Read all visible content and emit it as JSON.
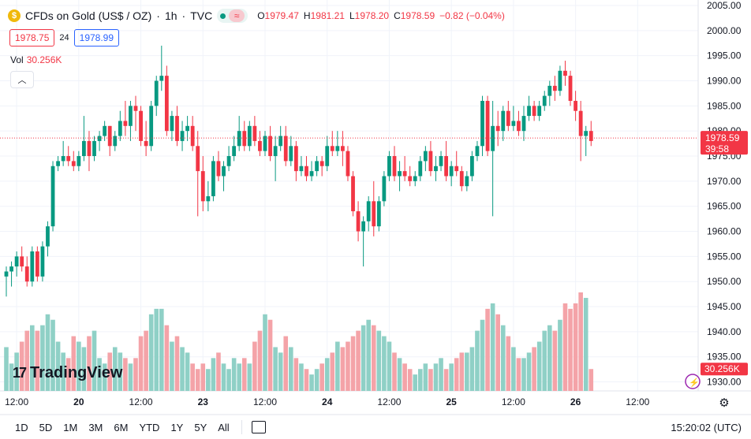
{
  "header": {
    "symbol": "CFDs on Gold (US$ / OZ)",
    "interval": "1h",
    "source": "TVC",
    "sep": "·",
    "open_key": "O",
    "open": "1979.47",
    "high_key": "H",
    "high": "1981.21",
    "low_key": "L",
    "low": "1978.20",
    "close_key": "C",
    "close": "1978.59",
    "change": "−0.82 (−0.04%)"
  },
  "quote": {
    "bid": "1978.75",
    "spread": "24",
    "ask": "1978.99"
  },
  "volume": {
    "label": "Vol",
    "value": "30.256K"
  },
  "price_label": {
    "price": "1978.59",
    "countdown": "39:58",
    "volume_tag": "30.256K"
  },
  "logo": {
    "text": "TradingView",
    "mark": "17"
  },
  "toolbar": {
    "ranges": [
      "1D",
      "5D",
      "1M",
      "3M",
      "6M",
      "YTD",
      "1Y",
      "5Y",
      "All"
    ],
    "time": "15:20:02 (UTC)"
  },
  "colors": {
    "up": "#089981",
    "down": "#f23645",
    "up_vol": "#8fd0c6",
    "down_vol": "#f4a3a8",
    "grid": "#f0f3fa"
  },
  "chart_data": {
    "type": "candlestick",
    "title": "CFDs on Gold (US$ / OZ) · 1h · TVC",
    "y_ticks": [
      1930,
      1935,
      1940,
      1945,
      1950,
      1955,
      1960,
      1965,
      1970,
      1975,
      1980,
      1985,
      1990,
      1995,
      2000,
      2005
    ],
    "ylim": [
      1928.2,
      2006.1
    ],
    "x_tick_labels": [
      {
        "label": "12:00",
        "index": 2
      },
      {
        "label": "20",
        "index": 14
      },
      {
        "label": "12:00",
        "index": 26
      },
      {
        "label": "23",
        "index": 38
      },
      {
        "label": "12:00",
        "index": 50
      },
      {
        "label": "24",
        "index": 62
      },
      {
        "label": "12:00",
        "index": 74
      },
      {
        "label": "25",
        "index": 86
      },
      {
        "label": "12:00",
        "index": 98
      },
      {
        "label": "26",
        "index": 110
      },
      {
        "label": "12:00",
        "index": 122
      }
    ],
    "current_price": 1978.59,
    "candles": [
      [
        1951,
        1953,
        1947,
        1952,
        8
      ],
      [
        1952,
        1954,
        1949,
        1953,
        5
      ],
      [
        1953,
        1956,
        1951,
        1955,
        7
      ],
      [
        1955,
        1957,
        1952,
        1953,
        9
      ],
      [
        1953,
        1955,
        1949,
        1950,
        11
      ],
      [
        1950,
        1957,
        1949,
        1956,
        12
      ],
      [
        1956,
        1957,
        1950,
        1951,
        11
      ],
      [
        1951,
        1958,
        1950,
        1957,
        12
      ],
      [
        1957,
        1962,
        1955,
        1961,
        14
      ],
      [
        1961,
        1974,
        1960,
        1973,
        13
      ],
      [
        1973,
        1975,
        1972,
        1974,
        9
      ],
      [
        1974,
        1978,
        1973,
        1975,
        7
      ],
      [
        1975,
        1977,
        1973,
        1974,
        6
      ],
      [
        1974,
        1976,
        1972,
        1973,
        10
      ],
      [
        1973,
        1976,
        1972,
        1975,
        9
      ],
      [
        1975,
        1983,
        1974,
        1978,
        8
      ],
      [
        1978,
        1980,
        1972,
        1975,
        10
      ],
      [
        1975,
        1979,
        1974,
        1978,
        11
      ],
      [
        1978,
        1980,
        1976,
        1979,
        6
      ],
      [
        1979,
        1982,
        1978,
        1981,
        5
      ],
      [
        1981,
        1981,
        1975,
        1977,
        7
      ],
      [
        1977,
        1980,
        1976,
        1979,
        8
      ],
      [
        1979,
        1984,
        1978,
        1982,
        7
      ],
      [
        1982,
        1986,
        1979,
        1981,
        6
      ],
      [
        1981,
        1986,
        1978,
        1985,
        5
      ],
      [
        1985,
        1987,
        1980,
        1984,
        6
      ],
      [
        1984,
        1985,
        1977,
        1978,
        10
      ],
      [
        1978,
        1982,
        1975,
        1977,
        11
      ],
      [
        1977,
        1986,
        1976,
        1985,
        14
      ],
      [
        1985,
        1991,
        1983,
        1990,
        15
      ],
      [
        1990,
        1997,
        1988,
        1991,
        15
      ],
      [
        1991,
        1993,
        1979,
        1980,
        12
      ],
      [
        1980,
        1984,
        1978,
        1983,
        9
      ],
      [
        1983,
        1985,
        1977,
        1978,
        10
      ],
      [
        1978,
        1982,
        1976,
        1980,
        8
      ],
      [
        1980,
        1983,
        1978,
        1981,
        7
      ],
      [
        1981,
        1983,
        1976,
        1977,
        5
      ],
      [
        1977,
        1980,
        1963,
        1972,
        4
      ],
      [
        1972,
        1975,
        1964,
        1966,
        5
      ],
      [
        1966,
        1970,
        1964,
        1967,
        4
      ],
      [
        1967,
        1975,
        1966,
        1974,
        6
      ],
      [
        1974,
        1976,
        1970,
        1971,
        7
      ],
      [
        1971,
        1974,
        1968,
        1973,
        5
      ],
      [
        1973,
        1977,
        1972,
        1975,
        4
      ],
      [
        1975,
        1979,
        1974,
        1977,
        6
      ],
      [
        1977,
        1983,
        1976,
        1980,
        5
      ],
      [
        1980,
        1982,
        1976,
        1977,
        6
      ],
      [
        1977,
        1982,
        1976,
        1981,
        5
      ],
      [
        1981,
        1983,
        1977,
        1978,
        9
      ],
      [
        1978,
        1980,
        1975,
        1976,
        11
      ],
      [
        1976,
        1980,
        1975,
        1979,
        14
      ],
      [
        1979,
        1981,
        1974,
        1975,
        13
      ],
      [
        1975,
        1979,
        1970,
        1977,
        8
      ],
      [
        1977,
        1981,
        1976,
        1979,
        7
      ],
      [
        1979,
        1981,
        1973,
        1974,
        10
      ],
      [
        1974,
        1979,
        1973,
        1977,
        8
      ],
      [
        1977,
        1978,
        1970,
        1972,
        6
      ],
      [
        1972,
        1975,
        1971,
        1973,
        5
      ],
      [
        1973,
        1975,
        1970,
        1971,
        4
      ],
      [
        1971,
        1974,
        1970,
        1972,
        3
      ],
      [
        1972,
        1975,
        1971,
        1974,
        4
      ],
      [
        1974,
        1975,
        1971,
        1973,
        5
      ],
      [
        1973,
        1979,
        1972,
        1977,
        6
      ],
      [
        1977,
        1980,
        1975,
        1976,
        7
      ],
      [
        1976,
        1980,
        1975,
        1977,
        9
      ],
      [
        1977,
        1980,
        1973,
        1976,
        8
      ],
      [
        1976,
        1977,
        1970,
        1971,
        9
      ],
      [
        1971,
        1972,
        1963,
        1964,
        10
      ],
      [
        1964,
        1966,
        1958,
        1960,
        11
      ],
      [
        1960,
        1963,
        1953,
        1962,
        12
      ],
      [
        1962,
        1967,
        1960,
        1966,
        13
      ],
      [
        1966,
        1970,
        1959,
        1961,
        12
      ],
      [
        1961,
        1967,
        1960,
        1966,
        11
      ],
      [
        1966,
        1972,
        1965,
        1971,
        10
      ],
      [
        1971,
        1976,
        1970,
        1975,
        9
      ],
      [
        1975,
        1977,
        1970,
        1971,
        7
      ],
      [
        1971,
        1974,
        1968,
        1972,
        6
      ],
      [
        1972,
        1975,
        1970,
        1971,
        5
      ],
      [
        1971,
        1973,
        1969,
        1970,
        4
      ],
      [
        1970,
        1972,
        1969,
        1971,
        3
      ],
      [
        1971,
        1975,
        1970,
        1974,
        4
      ],
      [
        1974,
        1977,
        1972,
        1976,
        5
      ],
      [
        1976,
        1978,
        1971,
        1972,
        4
      ],
      [
        1972,
        1975,
        1970,
        1973,
        5
      ],
      [
        1973,
        1976,
        1972,
        1975,
        6
      ],
      [
        1975,
        1978,
        1970,
        1971,
        4
      ],
      [
        1971,
        1974,
        1969,
        1973,
        5
      ],
      [
        1973,
        1976,
        1971,
        1972,
        6
      ],
      [
        1972,
        1973,
        1968,
        1969,
        7
      ],
      [
        1969,
        1972,
        1968,
        1971,
        7
      ],
      [
        1971,
        1976,
        1970,
        1975,
        8
      ],
      [
        1975,
        1978,
        1974,
        1977,
        11
      ],
      [
        1977,
        1987,
        1975,
        1986,
        13
      ],
      [
        1986,
        1987,
        1975,
        1976,
        15
      ],
      [
        1976,
        1986,
        1963,
        1981,
        16
      ],
      [
        1981,
        1984,
        1977,
        1980,
        14
      ],
      [
        1980,
        1985,
        1978,
        1984,
        12
      ],
      [
        1984,
        1986,
        1980,
        1981,
        10
      ],
      [
        1981,
        1985,
        1980,
        1982,
        8
      ],
      [
        1982,
        1984,
        1979,
        1980,
        6
      ],
      [
        1980,
        1985,
        1978,
        1983,
        6
      ],
      [
        1983,
        1987,
        1982,
        1985,
        7
      ],
      [
        1985,
        1986,
        1982,
        1983,
        8
      ],
      [
        1983,
        1986,
        1982,
        1985,
        9
      ],
      [
        1985,
        1988,
        1984,
        1987,
        11
      ],
      [
        1987,
        1990,
        1985,
        1989,
        12
      ],
      [
        1989,
        1991,
        1986,
        1988,
        11
      ],
      [
        1988,
        1993,
        1987,
        1992,
        13
      ],
      [
        1992,
        1994,
        1989,
        1991,
        16
      ],
      [
        1991,
        1992,
        1985,
        1986,
        15
      ],
      [
        1986,
        1988,
        1982,
        1984,
        16
      ],
      [
        1984,
        1986,
        1974,
        1979,
        18
      ],
      [
        1979,
        1981,
        1975,
        1980,
        17
      ],
      [
        1980,
        1982,
        1977,
        1978,
        4
      ]
    ]
  }
}
